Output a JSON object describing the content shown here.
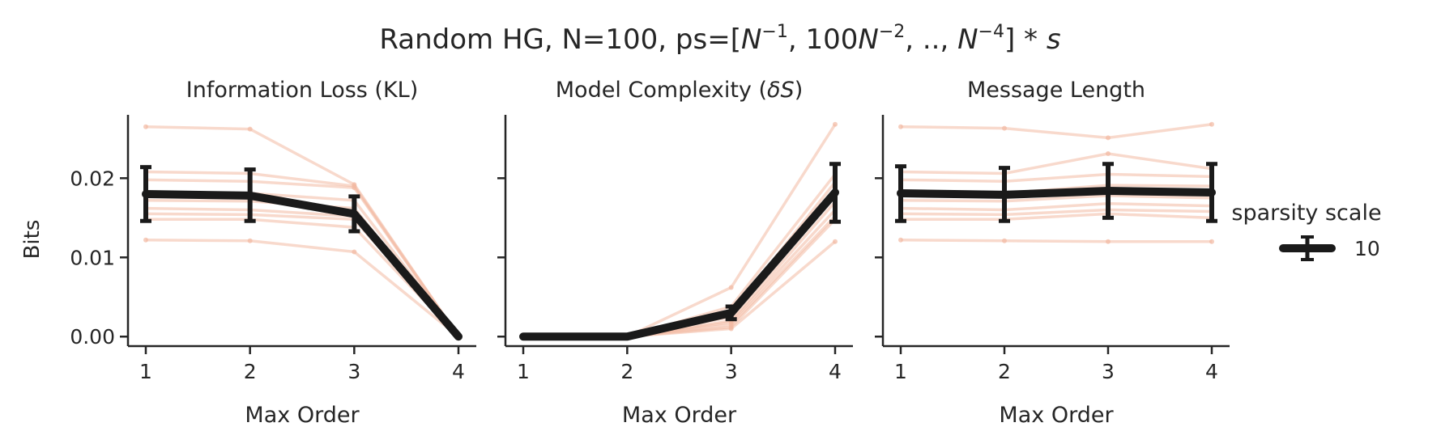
{
  "figure": {
    "suptitle_plain": "Random HG, N=100, ps=[",
    "suptitle_parts": [
      "Random HG, N=100, ps=[",
      "N",
      "−1",
      ", 100",
      "N",
      "−2",
      ", ..,  ",
      "N",
      "−4",
      "] * ",
      "s"
    ]
  },
  "legend": {
    "title": "sparsity scale",
    "entries": [
      {
        "label": "10",
        "color": "#1a1a1a"
      }
    ]
  },
  "colors": {
    "mean_line": "#1a1a1a",
    "sample_line": "#f2b9a3",
    "axis": "#262626"
  },
  "chart_data": [
    {
      "type": "line",
      "title": "Information Loss (KL)",
      "xlabel": "Max Order",
      "ylabel": "Bits",
      "x": [
        1,
        2,
        3,
        4
      ],
      "ylim": [
        -0.0012,
        0.028
      ],
      "yticks": [
        0.0,
        0.01,
        0.02
      ],
      "ytick_labels": [
        "0.00",
        "0.01",
        "0.02"
      ],
      "xticks": [
        "1",
        "2",
        "3",
        "4"
      ],
      "mean": [
        0.018,
        0.0178,
        0.0155,
        0.0
      ],
      "err_low": [
        0.0146,
        0.0146,
        0.0133,
        0.0
      ],
      "err_high": [
        0.0214,
        0.0211,
        0.0177,
        0.0
      ],
      "samples": [
        [
          0.0265,
          0.0262,
          0.0192,
          0.0
        ],
        [
          0.0208,
          0.0206,
          0.019,
          0.0
        ],
        [
          0.0198,
          0.0196,
          0.0188,
          0.0
        ],
        [
          0.0182,
          0.0181,
          0.0172,
          0.0
        ],
        [
          0.0172,
          0.0171,
          0.0162,
          0.0
        ],
        [
          0.0162,
          0.016,
          0.0152,
          0.0
        ],
        [
          0.0155,
          0.0154,
          0.0148,
          0.0
        ],
        [
          0.0148,
          0.0148,
          0.0138,
          0.0
        ],
        [
          0.0122,
          0.0121,
          0.0107,
          0.0
        ]
      ]
    },
    {
      "type": "line",
      "title": "Model Complexity (δS)",
      "title_parts": [
        "Model Complexity (",
        "δS",
        ")"
      ],
      "xlabel": "Max Order",
      "x": [
        1,
        2,
        3,
        4
      ],
      "ylim": [
        -0.0012,
        0.028
      ],
      "yticks": [
        0.0,
        0.01,
        0.02
      ],
      "xticks": [
        "1",
        "2",
        "3",
        "4"
      ],
      "mean": [
        0.0,
        0.0,
        0.003,
        0.0182
      ],
      "err_low": [
        0.0,
        0.0,
        0.0022,
        0.0145
      ],
      "err_high": [
        0.0,
        0.0,
        0.0038,
        0.0218
      ],
      "samples": [
        [
          0.0,
          0.0,
          0.0062,
          0.0268
        ],
        [
          0.0,
          0.0,
          0.0038,
          0.0205
        ],
        [
          0.0,
          0.0,
          0.003,
          0.0195
        ],
        [
          0.0,
          0.0,
          0.0025,
          0.0185
        ],
        [
          0.0,
          0.0,
          0.002,
          0.017
        ],
        [
          0.0,
          0.0,
          0.0018,
          0.016
        ],
        [
          0.0,
          0.0,
          0.0015,
          0.0152
        ],
        [
          0.0,
          0.0,
          0.0012,
          0.0148
        ],
        [
          0.0,
          0.0,
          0.001,
          0.012
        ]
      ]
    },
    {
      "type": "line",
      "title": "Message Length",
      "xlabel": "Max Order",
      "x": [
        1,
        2,
        3,
        4
      ],
      "ylim": [
        -0.0012,
        0.028
      ],
      "yticks": [
        0.0,
        0.01,
        0.02
      ],
      "xticks": [
        "1",
        "2",
        "3",
        "4"
      ],
      "mean": [
        0.0181,
        0.0179,
        0.0184,
        0.0182
      ],
      "err_low": [
        0.0146,
        0.0146,
        0.015,
        0.0146
      ],
      "err_high": [
        0.0215,
        0.0213,
        0.0218,
        0.0218
      ],
      "samples": [
        [
          0.0265,
          0.0263,
          0.0251,
          0.0268
        ],
        [
          0.0208,
          0.0206,
          0.0231,
          0.0212
        ],
        [
          0.0198,
          0.0196,
          0.0205,
          0.0202
        ],
        [
          0.0182,
          0.0181,
          0.0191,
          0.019
        ],
        [
          0.0172,
          0.0171,
          0.0178,
          0.0175
        ],
        [
          0.0162,
          0.016,
          0.0168,
          0.0165
        ],
        [
          0.0155,
          0.0154,
          0.016,
          0.0158
        ],
        [
          0.0148,
          0.0148,
          0.0155,
          0.015
        ],
        [
          0.0122,
          0.0121,
          0.012,
          0.012
        ]
      ]
    }
  ]
}
